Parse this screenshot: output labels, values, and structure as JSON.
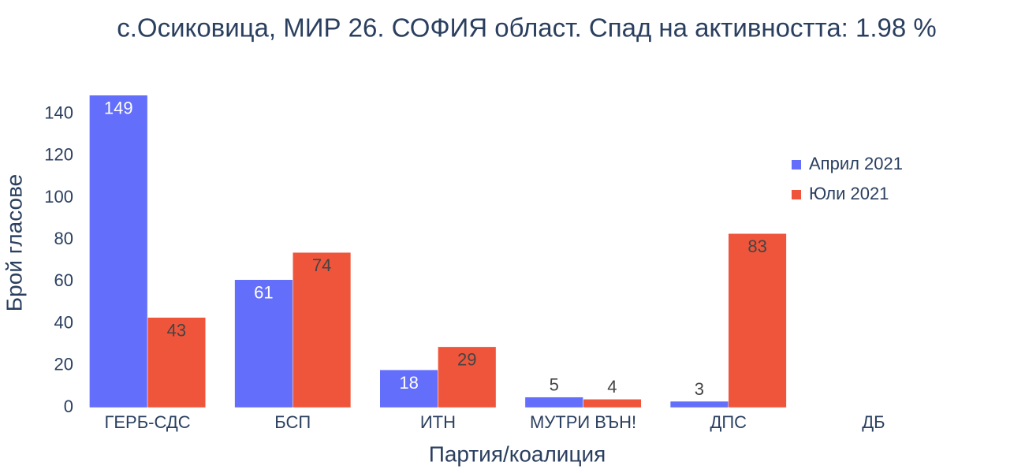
{
  "chart_data": {
    "type": "bar",
    "title": "с.Осиковица, МИР 26. СОФИЯ област. Спад на активността: 1.98  %",
    "x_label": "Партия/коалиция",
    "y_label": "Брой гласове",
    "categories": [
      "ГЕРБ-СДС",
      "БСП",
      "ИТН",
      "МУТРИ ВЪН!",
      "ДПС",
      "ДБ"
    ],
    "series": [
      {
        "name": "Април 2021",
        "color": "#636efa",
        "values": [
          149,
          61,
          18,
          5,
          3,
          null
        ]
      },
      {
        "name": "Юли 2021",
        "color": "#ef553b",
        "values": [
          43,
          74,
          29,
          4,
          83,
          null
        ]
      }
    ],
    "ylim": [
      0,
      156.8
    ],
    "yticks": [
      0,
      20,
      40,
      60,
      80,
      100,
      120,
      140
    ],
    "grid": false,
    "legend": "top-right"
  }
}
